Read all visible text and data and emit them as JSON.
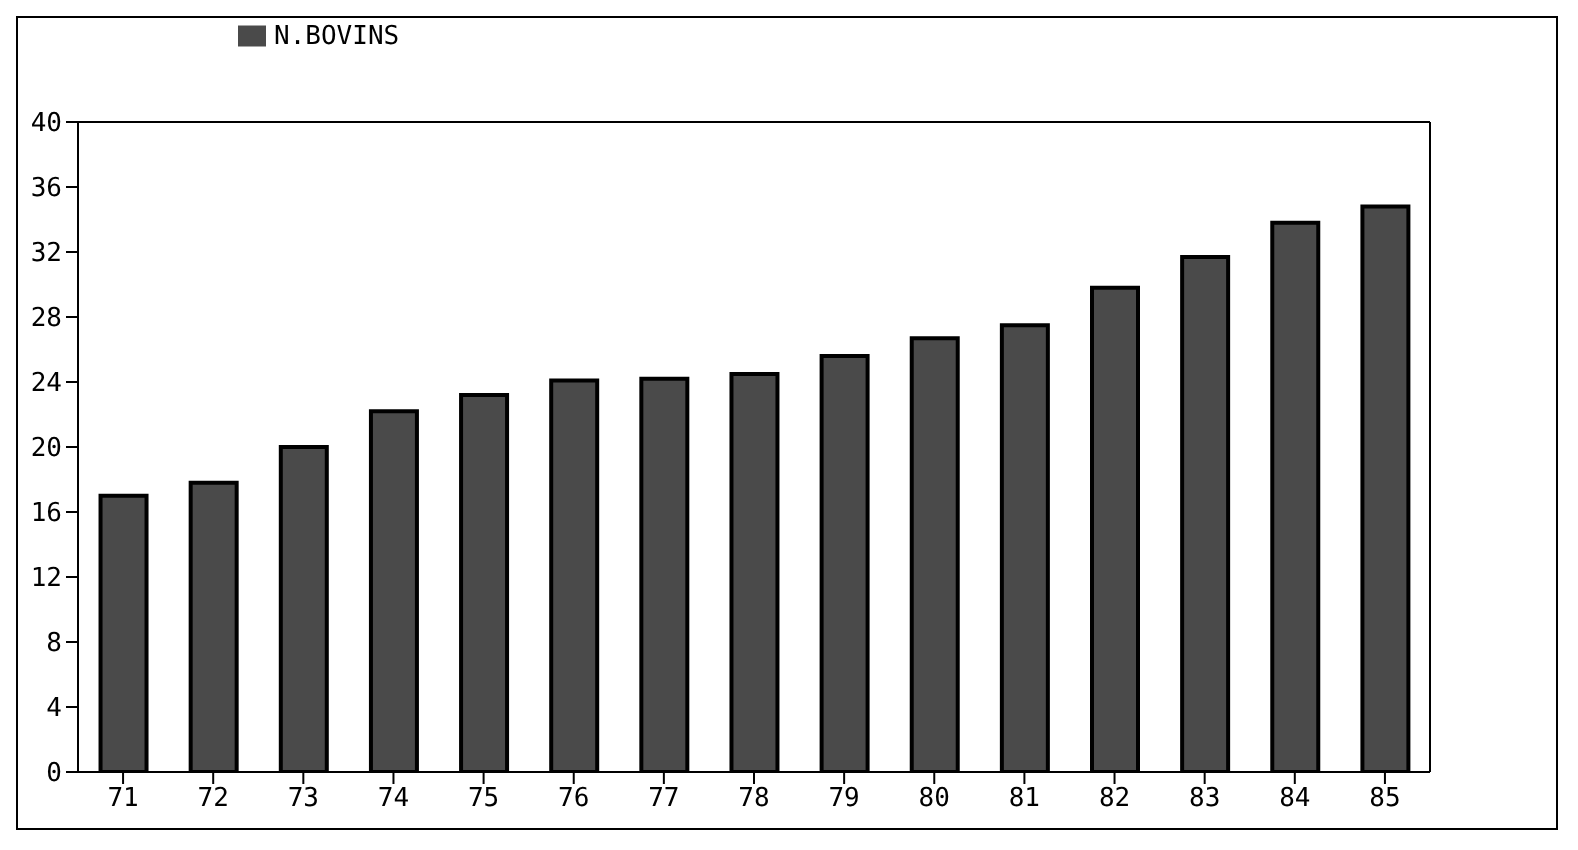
{
  "chart_data": {
    "type": "bar",
    "categories": [
      "71",
      "72",
      "73",
      "74",
      "75",
      "76",
      "77",
      "78",
      "79",
      "80",
      "81",
      "82",
      "83",
      "84",
      "85"
    ],
    "series": [
      {
        "name": "N.BOVINS",
        "color": "#4a4a4a",
        "values": [
          17,
          17.8,
          20,
          22.2,
          23.2,
          24.1,
          24.2,
          24.5,
          25.6,
          26.7,
          27.5,
          29.8,
          31.7,
          33.8,
          34.8
        ]
      }
    ],
    "ylim": [
      0,
      40
    ],
    "yticks": [
      0,
      4,
      8,
      12,
      16,
      20,
      24,
      28,
      32,
      36,
      40
    ],
    "legend": "top left"
  }
}
